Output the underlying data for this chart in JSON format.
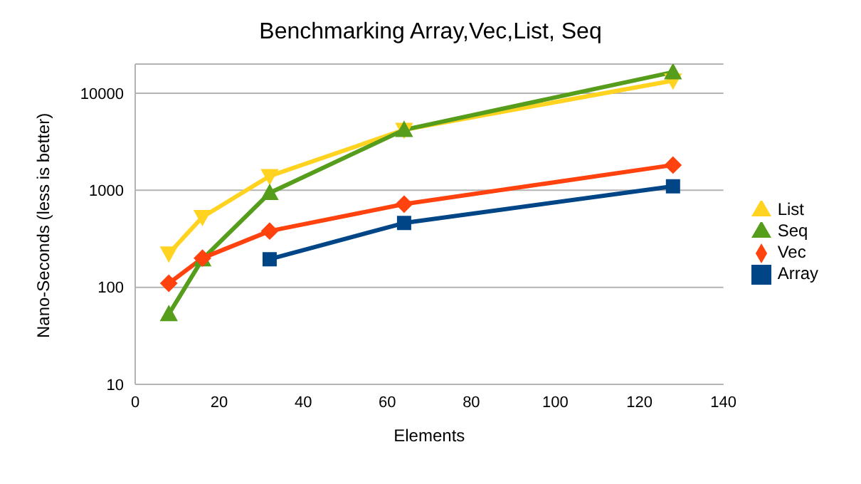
{
  "chart_data": {
    "type": "line",
    "title": "Benchmarking Array,Vec,List, Seq",
    "xlabel": "Elements",
    "ylabel": "Nano-Seconds (less is better)",
    "x": [
      8,
      16,
      32,
      64,
      128
    ],
    "series": [
      {
        "name": "List",
        "color": "#ffd320",
        "marker": "triangle-down",
        "values": [
          223,
          530,
          1400,
          4200,
          13500
        ]
      },
      {
        "name": "Seq",
        "color": "#579d1c",
        "marker": "triangle",
        "values": [
          53,
          195,
          940,
          4200,
          16500
        ]
      },
      {
        "name": "Vec",
        "color": "#ff420e",
        "marker": "diamond",
        "values": [
          110,
          200,
          380,
          720,
          1820
        ]
      },
      {
        "name": "Array",
        "color": "#004586",
        "marker": "square",
        "values": [
          null,
          null,
          195,
          460,
          1100
        ]
      }
    ],
    "xlim": [
      0,
      140
    ],
    "xticks": [
      0,
      20,
      40,
      60,
      80,
      100,
      120,
      140
    ],
    "ylim": [
      10,
      20000
    ],
    "yticks": [
      10,
      100,
      1000,
      10000
    ],
    "log": "y",
    "grid": "y",
    "legend": "right"
  }
}
